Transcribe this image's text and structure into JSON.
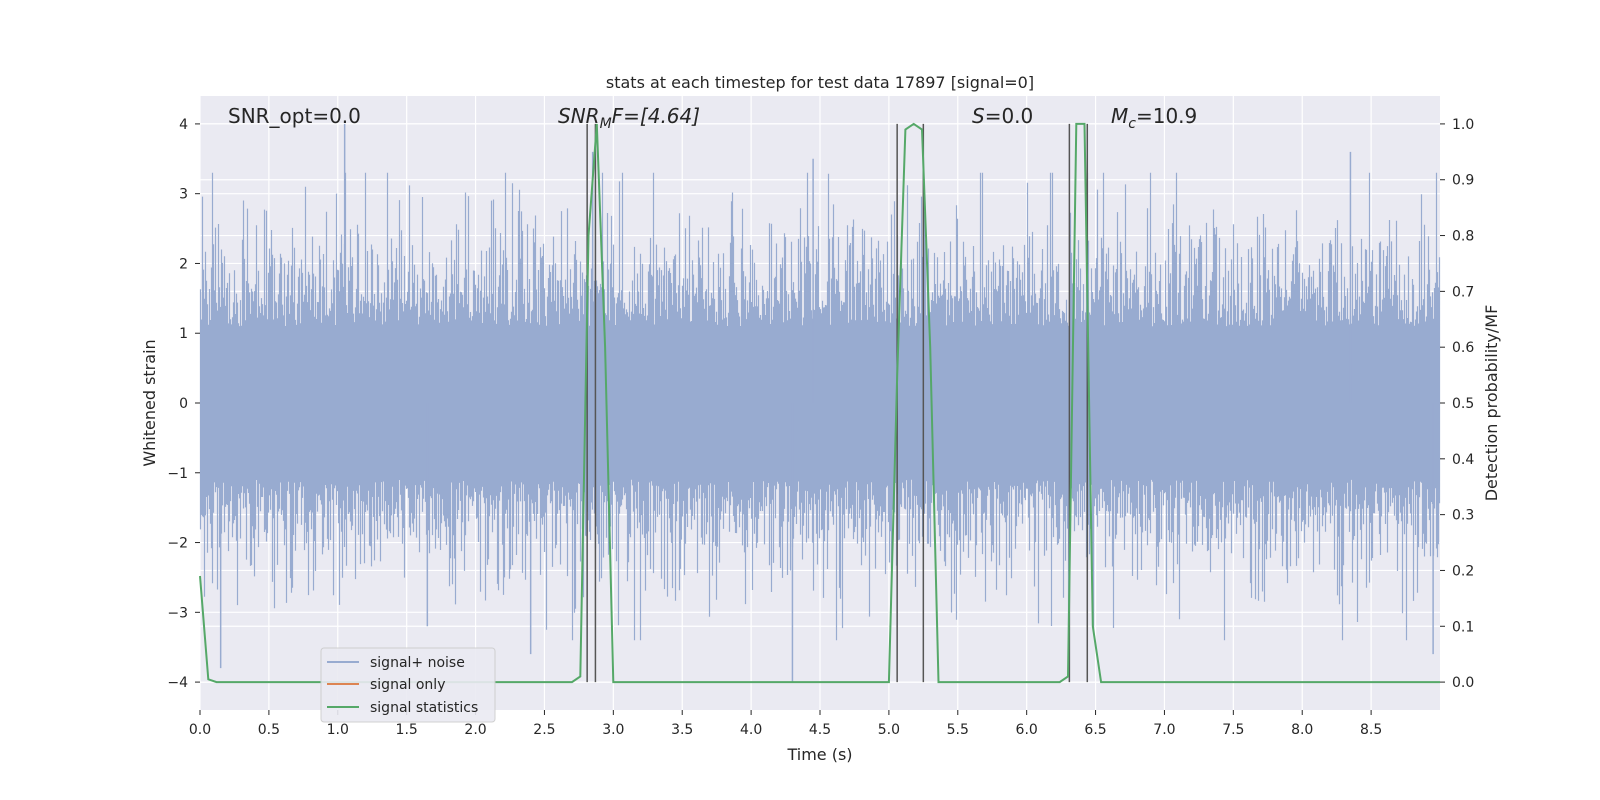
{
  "chart_data": {
    "type": "line",
    "title": "stats at each timestep for test data 17897 [signal=0]",
    "xlabel": "Time (s)",
    "ylabel": "Whitened strain",
    "y2label": "Detection probability/MF",
    "xlim": [
      0.0,
      9.0
    ],
    "ylim": [
      -4.4,
      4.4
    ],
    "y2lim": [
      -0.05,
      1.05
    ],
    "xticks": [
      "0.0",
      "0.5",
      "1.0",
      "1.5",
      "2.0",
      "2.5",
      "3.0",
      "3.5",
      "4.0",
      "4.5",
      "5.0",
      "5.5",
      "6.0",
      "6.5",
      "7.0",
      "7.5",
      "8.0",
      "8.5"
    ],
    "yticks": [
      "4",
      "3",
      "2",
      "1",
      "0",
      "−1",
      "−2",
      "−3",
      "−4"
    ],
    "y2ticks": [
      "1.0",
      "0.9",
      "0.8",
      "0.7",
      "0.6",
      "0.5",
      "0.4",
      "0.3",
      "0.2",
      "0.1",
      "0.0"
    ],
    "grid": true,
    "legend_position": "lower-left",
    "annotations": {
      "snr_opt": "SNR_opt=0.0",
      "snr_mf": "SNR",
      "snr_mf_sub": "M",
      "snr_mf_rest": "F=[4.64]",
      "s": "S",
      "s_rest": "=0.0",
      "mc": "M",
      "mc_sub": "c",
      "mc_rest": "=10.9"
    },
    "series": [
      {
        "name": "signal+ noise",
        "color": "#98abd0",
        "axis": "left",
        "description_points": "gaussian-like whitened noise, roughly |y|<=2 typical, spikes to about ±4",
        "extremes": [
          {
            "x": 0.15,
            "y": -3.8
          },
          {
            "x": 1.05,
            "y": 4.0
          },
          {
            "x": 1.65,
            "y": -3.2
          },
          {
            "x": 2.4,
            "y": -3.6
          },
          {
            "x": 2.85,
            "y": 3.6
          },
          {
            "x": 4.3,
            "y": -4.0
          },
          {
            "x": 4.45,
            "y": 3.5
          },
          {
            "x": 8.35,
            "y": 3.6
          },
          {
            "x": 8.95,
            "y": -3.6
          }
        ]
      },
      {
        "name": "signal only",
        "color": "#dd8452",
        "axis": "left",
        "x": [],
        "y": []
      },
      {
        "name": "signal statistics",
        "color": "#55a868",
        "axis": "right",
        "x": [
          0.0,
          0.06,
          0.12,
          2.7,
          2.76,
          2.82,
          2.88,
          2.94,
          3.0,
          5.0,
          5.06,
          5.12,
          5.18,
          5.24,
          5.3,
          5.36,
          6.24,
          6.3,
          6.36,
          6.42,
          6.48,
          6.54,
          9.0
        ],
        "y": [
          0.19,
          0.005,
          0.0,
          0.0,
          0.01,
          0.8,
          1.0,
          0.6,
          0.0,
          0.0,
          0.55,
          0.99,
          1.0,
          0.99,
          0.6,
          0.0,
          0.0,
          0.01,
          1.0,
          1.0,
          0.1,
          0.0,
          0.0
        ]
      }
    ],
    "vertical_markers": [
      2.81,
      2.87,
      5.06,
      5.25,
      6.31,
      6.44
    ],
    "marker_color": "#555555",
    "colors": {
      "plot_background": "#eaeaf2",
      "grid": "#ffffff",
      "legend_background": "#eaeaf2"
    }
  }
}
